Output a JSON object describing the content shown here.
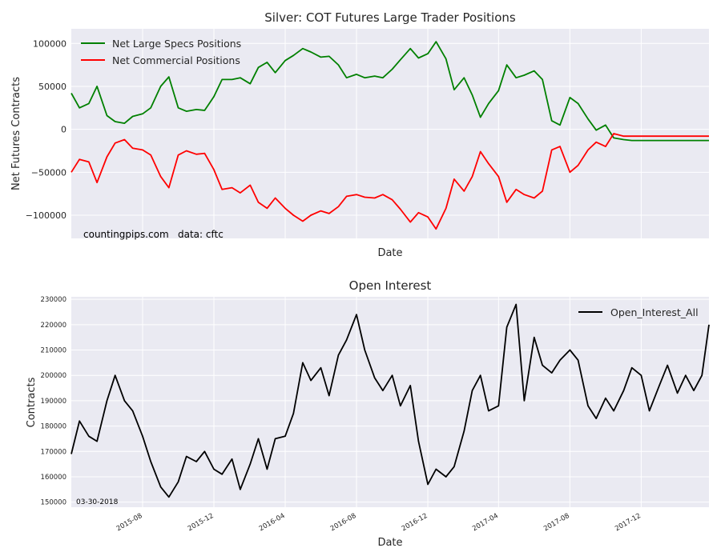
{
  "chart_data": [
    {
      "type": "line",
      "title": "Silver: COT Futures Large Trader Positions",
      "xlabel": "Date",
      "ylabel": "Net Futures Contracts",
      "xlim": [
        "2015-04-01",
        "2018-03-27"
      ],
      "ylim": [
        -127000,
        117000
      ],
      "yticks": [
        -100000,
        -50000,
        0,
        50000,
        100000
      ],
      "ytick_labels": [
        "−100000",
        "−50000",
        "0",
        "50000",
        "100000"
      ],
      "grid": true,
      "legend_position": "top-left",
      "annotations": [
        "countingpips.com",
        "data: cftc"
      ],
      "series": [
        {
          "name": "Net Large Specs Positions",
          "color": "#008000",
          "x": [
            "2015-04-01",
            "2015-04-15",
            "2015-05-01",
            "2015-05-15",
            "2015-06-01",
            "2015-06-15",
            "2015-07-01",
            "2015-07-15",
            "2015-08-01",
            "2015-08-15",
            "2015-09-01",
            "2015-09-15",
            "2015-10-01",
            "2015-10-15",
            "2015-11-01",
            "2015-11-15",
            "2015-12-01",
            "2015-12-15",
            "2016-01-01",
            "2016-01-15",
            "2016-02-01",
            "2016-02-15",
            "2016-03-01",
            "2016-03-15",
            "2016-04-01",
            "2016-04-15",
            "2016-05-01",
            "2016-05-15",
            "2016-06-01",
            "2016-06-15",
            "2016-07-01",
            "2016-07-15",
            "2016-08-01",
            "2016-08-15",
            "2016-09-01",
            "2016-09-15",
            "2016-10-01",
            "2016-10-15",
            "2016-11-01",
            "2016-11-15",
            "2016-12-01",
            "2016-12-15",
            "2017-01-01",
            "2017-01-15",
            "2017-02-01",
            "2017-02-15",
            "2017-03-01",
            "2017-03-15",
            "2017-04-01",
            "2017-04-15",
            "2017-05-01",
            "2017-05-15",
            "2017-06-01",
            "2017-06-15",
            "2017-07-01",
            "2017-07-15",
            "2017-08-01",
            "2017-08-15",
            "2017-09-01",
            "2017-09-15",
            "2017-10-01",
            "2017-10-15",
            "2017-11-01",
            "2017-11-15",
            "2017-12-01",
            "2017-12-15",
            "2018-01-01",
            "2018-01-15",
            "2018-02-01",
            "2018-02-15",
            "2018-03-01",
            "2018-03-15",
            "2018-03-27"
          ],
          "values": [
            42000,
            25000,
            30000,
            50000,
            16000,
            9000,
            7000,
            15000,
            18000,
            25000,
            50000,
            61000,
            25000,
            21000,
            23000,
            22000,
            38000,
            58000,
            58000,
            60000,
            53000,
            72000,
            78000,
            66000,
            80000,
            86000,
            94000,
            90000,
            84000,
            85000,
            75000,
            60000,
            64000,
            60000,
            62000,
            60000,
            70000,
            81000,
            94000,
            83000,
            88000,
            102000,
            82000,
            46000,
            60000,
            40000,
            14000,
            30000,
            45000,
            75000,
            60000,
            63000,
            68000,
            58000,
            10000,
            5000,
            37000,
            30000,
            12000,
            -1000,
            5000,
            -10000,
            -12000,
            -13000,
            -13000,
            -13000,
            -13000,
            -13000,
            -13000,
            -13000,
            -13000,
            -13000,
            -13000
          ]
        },
        {
          "name": "Net Commercial Positions",
          "color": "#ff0000",
          "x": [
            "2015-04-01",
            "2015-04-15",
            "2015-05-01",
            "2015-05-15",
            "2015-06-01",
            "2015-06-15",
            "2015-07-01",
            "2015-07-15",
            "2015-08-01",
            "2015-08-15",
            "2015-09-01",
            "2015-09-15",
            "2015-10-01",
            "2015-10-15",
            "2015-11-01",
            "2015-11-15",
            "2015-12-01",
            "2015-12-15",
            "2016-01-01",
            "2016-01-15",
            "2016-02-01",
            "2016-02-15",
            "2016-03-01",
            "2016-03-15",
            "2016-04-01",
            "2016-04-15",
            "2016-05-01",
            "2016-05-15",
            "2016-06-01",
            "2016-06-15",
            "2016-07-01",
            "2016-07-15",
            "2016-08-01",
            "2016-08-15",
            "2016-09-01",
            "2016-09-15",
            "2016-10-01",
            "2016-10-15",
            "2016-11-01",
            "2016-11-15",
            "2016-12-01",
            "2016-12-15",
            "2017-01-01",
            "2017-01-15",
            "2017-02-01",
            "2017-02-15",
            "2017-03-01",
            "2017-03-15",
            "2017-04-01",
            "2017-04-15",
            "2017-05-01",
            "2017-05-15",
            "2017-06-01",
            "2017-06-15",
            "2017-07-01",
            "2017-07-15",
            "2017-08-01",
            "2017-08-15",
            "2017-09-01",
            "2017-09-15",
            "2017-10-01",
            "2017-10-15",
            "2017-11-01",
            "2017-11-15",
            "2017-12-01",
            "2017-12-15",
            "2018-01-01",
            "2018-01-15",
            "2018-02-01",
            "2018-02-15",
            "2018-03-01",
            "2018-03-15",
            "2018-03-27"
          ],
          "values": [
            -50000,
            -35000,
            -38000,
            -62000,
            -32000,
            -16000,
            -12000,
            -22000,
            -24000,
            -30000,
            -55000,
            -68000,
            -30000,
            -25000,
            -29000,
            -28000,
            -47000,
            -70000,
            -68000,
            -74000,
            -65000,
            -85000,
            -92000,
            -80000,
            -92000,
            -100000,
            -107000,
            -100000,
            -95000,
            -98000,
            -90000,
            -78000,
            -76000,
            -79000,
            -80000,
            -76000,
            -82000,
            -93000,
            -108000,
            -97000,
            -102000,
            -116000,
            -92000,
            -58000,
            -72000,
            -55000,
            -26000,
            -40000,
            -55000,
            -85000,
            -70000,
            -76000,
            -80000,
            -72000,
            -24000,
            -20000,
            -50000,
            -42000,
            -24000,
            -15000,
            -20000,
            -5000,
            -8000,
            -8000,
            -8000,
            -8000,
            -8000,
            -8000,
            -8000,
            -8000,
            -8000,
            -8000,
            -8000
          ]
        }
      ]
    },
    {
      "type": "line",
      "title": "Open Interest",
      "xlabel": "Date",
      "ylabel": "Contracts",
      "xlim": [
        "2015-04-01",
        "2018-03-27"
      ],
      "ylim": [
        148000,
        231000
      ],
      "yticks": [
        150000,
        160000,
        170000,
        180000,
        190000,
        200000,
        210000,
        220000,
        230000
      ],
      "xticks": [
        "2015-08",
        "2015-12",
        "2016-04",
        "2016-08",
        "2016-12",
        "2017-04",
        "2017-08",
        "2017-12"
      ],
      "grid": true,
      "legend_position": "top-right",
      "annotations": [
        "03-30-2018"
      ],
      "series": [
        {
          "name": "Open_Interest_All",
          "color": "#000000",
          "x": [
            "2015-04-01",
            "2015-04-15",
            "2015-05-01",
            "2015-05-15",
            "2015-06-01",
            "2015-06-15",
            "2015-07-01",
            "2015-07-15",
            "2015-08-01",
            "2015-08-15",
            "2015-09-01",
            "2015-09-15",
            "2015-10-01",
            "2015-10-15",
            "2015-11-01",
            "2015-11-15",
            "2015-12-01",
            "2015-12-15",
            "2016-01-01",
            "2016-01-15",
            "2016-02-01",
            "2016-02-15",
            "2016-03-01",
            "2016-03-15",
            "2016-04-01",
            "2016-04-15",
            "2016-05-01",
            "2016-05-15",
            "2016-06-01",
            "2016-06-15",
            "2016-07-01",
            "2016-07-15",
            "2016-08-01",
            "2016-08-15",
            "2016-09-01",
            "2016-09-15",
            "2016-10-01",
            "2016-10-15",
            "2016-11-01",
            "2016-11-15",
            "2016-12-01",
            "2016-12-15",
            "2017-01-01",
            "2017-01-15",
            "2017-02-01",
            "2017-02-15",
            "2017-03-01",
            "2017-03-15",
            "2017-04-01",
            "2017-04-15",
            "2017-05-01",
            "2017-05-15",
            "2017-06-01",
            "2017-06-15",
            "2017-07-01",
            "2017-07-15",
            "2017-08-01",
            "2017-08-15",
            "2017-09-01",
            "2017-09-15",
            "2017-10-01",
            "2017-10-15",
            "2017-11-01",
            "2017-11-15",
            "2017-12-01",
            "2017-12-15",
            "2018-01-01",
            "2018-01-15",
            "2018-02-01",
            "2018-02-15",
            "2018-03-01",
            "2018-03-15",
            "2018-03-27"
          ],
          "values": [
            169000,
            182000,
            176000,
            174000,
            190000,
            200000,
            190000,
            186000,
            176000,
            166000,
            156000,
            152000,
            158000,
            168000,
            166000,
            170000,
            163000,
            161000,
            167000,
            155000,
            165000,
            175000,
            163000,
            175000,
            176000,
            185000,
            205000,
            198000,
            203000,
            192000,
            208000,
            214000,
            224000,
            210000,
            199000,
            194000,
            200000,
            188000,
            196000,
            174000,
            157000,
            163000,
            160000,
            164000,
            178000,
            194000,
            200000,
            186000,
            188000,
            219000,
            228000,
            190000,
            215000,
            204000,
            201000,
            206000,
            210000,
            206000,
            188000,
            183000,
            191000,
            186000,
            194000,
            203000,
            200000,
            186000,
            196000,
            204000,
            193000,
            200000,
            194000,
            200000,
            220000
          ]
        }
      ]
    }
  ]
}
